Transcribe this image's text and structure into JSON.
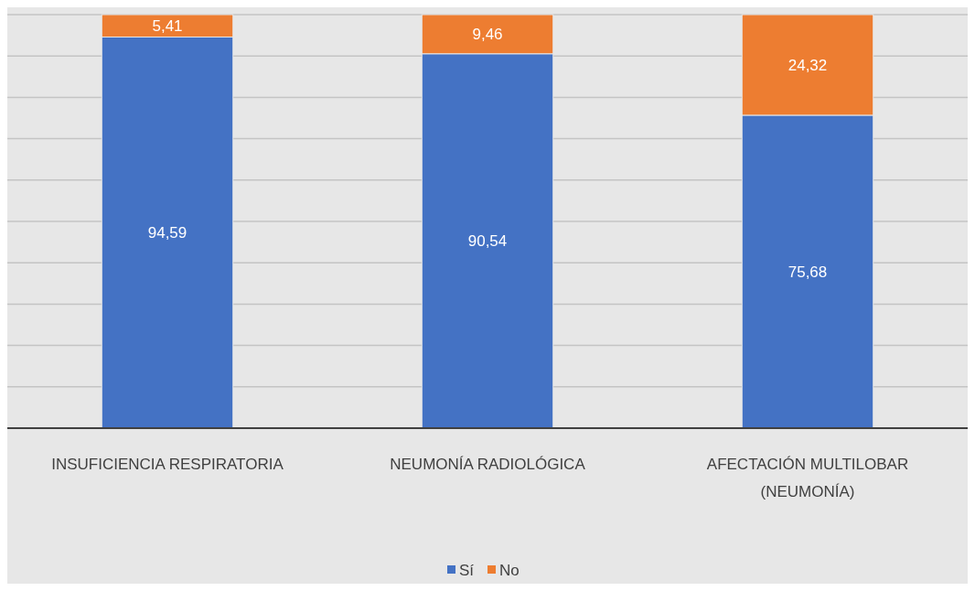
{
  "chart_data": {
    "type": "bar",
    "stacked": true,
    "categories": [
      "INSUFICIENCIA RESPIRATORIA",
      "NEUMONÍA RADIOLÓGICA",
      "AFECTACIÓN MULTILOBAR (NEUMONÍA)"
    ],
    "series": [
      {
        "name": "Sí",
        "color": "#4472c4",
        "values": [
          94.59,
          90.54,
          75.68
        ],
        "value_labels": [
          "94,59",
          "90,54",
          "75,68"
        ]
      },
      {
        "name": "No",
        "color": "#ed7d31",
        "values": [
          5.41,
          9.46,
          24.32
        ],
        "value_labels": [
          "5,41",
          "9,46",
          "24,32"
        ]
      }
    ],
    "tick_labels": "x",
    "grid": "y",
    "legend": "bottom"
  }
}
